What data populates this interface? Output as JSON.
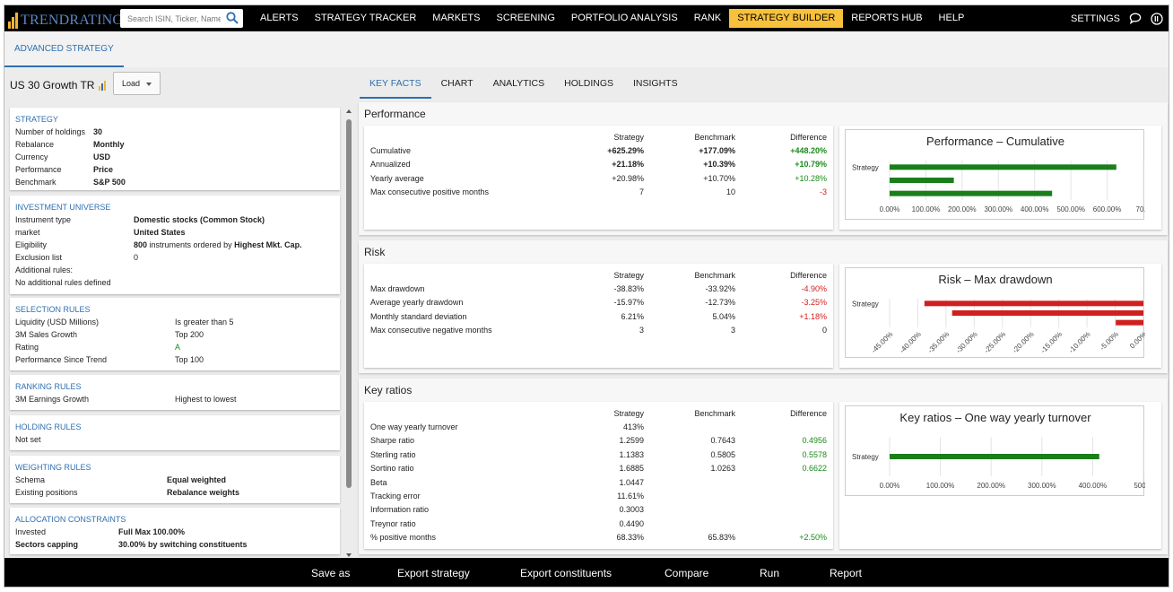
{
  "brand": {
    "logo_text": "TRENDRATING",
    "accent": "#f7c13b",
    "link_color": "#2f6fb0"
  },
  "search": {
    "placeholder": "Search ISIN, Ticker, Name"
  },
  "nav": {
    "items": [
      "ALERTS",
      "STRATEGY TRACKER",
      "MARKETS",
      "SCREENING",
      "PORTFOLIO ANALYSIS",
      "RANK",
      "STRATEGY BUILDER",
      "REPORTS HUB",
      "HELP"
    ],
    "active": "STRATEGY BUILDER",
    "settings": "SETTINGS"
  },
  "subhead": {
    "tab": "ADVANCED STRATEGY"
  },
  "strategy": {
    "name": "US 30 Growth TR",
    "load_label": "Load"
  },
  "cards": {
    "strategy": {
      "title": "STRATEGY",
      "rows": [
        {
          "k": "Number of holdings",
          "v": "30"
        },
        {
          "k": "Rebalance",
          "v": "Monthly"
        },
        {
          "k": "Currency",
          "v": "USD"
        },
        {
          "k": "Performance",
          "v": "Price"
        },
        {
          "k": "Benchmark",
          "v": "S&P 500"
        }
      ]
    },
    "universe": {
      "title": "INVESTMENT UNIVERSE",
      "instrument_type_k": "Instrument type",
      "instrument_type_v": "Domestic stocks (Common Stock)",
      "market_k": "market",
      "market_v": "United States",
      "eligibility_k": "Eligibility",
      "eligibility_count": "800",
      "eligibility_text": " instruments ordered by ",
      "eligibility_order": "Highest Mkt. Cap.",
      "exclusion_k": "Exclusion list",
      "exclusion_v": "0",
      "additional_k": "Additional rules:",
      "additional_v": "No additional rules defined"
    },
    "selection": {
      "title": "SELECTION RULES",
      "rows": [
        {
          "k": "Liquidity (USD Millions)",
          "v": "Is greater than 5"
        },
        {
          "k": "3M Sales Growth",
          "v": "Top 200"
        },
        {
          "k": "Rating",
          "v": "A"
        },
        {
          "k": "Performance Since Trend",
          "v": "Top 100"
        }
      ]
    },
    "ranking": {
      "title": "RANKING RULES",
      "k": "3M Earnings Growth",
      "v": "Highest to lowest"
    },
    "holding": {
      "title": "HOLDING RULES",
      "v": "Not set"
    },
    "weighting": {
      "title": "WEIGHTING RULES",
      "rows": [
        {
          "k": "Schema",
          "v": "Equal weighted"
        },
        {
          "k": "Existing positions",
          "v": "Rebalance weights"
        }
      ]
    },
    "allocation": {
      "title": "ALLOCATION CONSTRAINTS",
      "rows": [
        {
          "k": "Invested",
          "v": "Full Max 100.00%"
        },
        {
          "k": "Sectors capping",
          "v": "30.00% by switching constituents"
        }
      ]
    }
  },
  "tabs": [
    "KEY FACTS",
    "CHART",
    "ANALYTICS",
    "HOLDINGS",
    "INSIGHTS"
  ],
  "columns": [
    "Strategy",
    "Benchmark",
    "Difference"
  ],
  "performance": {
    "title": "Performance",
    "rows": [
      {
        "label": "Cumulative",
        "s": "+625.29%",
        "b": "+177.09%",
        "d": "+448.20%",
        "dc": "pos",
        "bold": true
      },
      {
        "label": "Annualized",
        "s": "+21.18%",
        "b": "+10.39%",
        "d": "+10.79%",
        "dc": "pos",
        "bold": true
      },
      {
        "label": "Yearly average",
        "s": "+20.98%",
        "b": "+10.70%",
        "d": "+10.28%",
        "dc": "pos",
        "bold": false
      },
      {
        "label": "Max consecutive positive months",
        "s": "7",
        "b": "10",
        "d": "-3",
        "dc": "neg",
        "bold": false
      }
    ]
  },
  "risk": {
    "title": "Risk",
    "rows": [
      {
        "label": "Max drawdown",
        "s": "-38.83%",
        "b": "-33.92%",
        "d": "-4.90%",
        "dc": "neg"
      },
      {
        "label": "Average yearly drawdown",
        "s": "-15.97%",
        "b": "-12.73%",
        "d": "-3.25%",
        "dc": "neg"
      },
      {
        "label": "Monthly standard deviation",
        "s": "6.21%",
        "b": "5.04%",
        "d": "+1.18%",
        "dc": "neg"
      },
      {
        "label": "Max consecutive negative months",
        "s": "3",
        "b": "3",
        "d": "0",
        "dc": ""
      }
    ]
  },
  "ratios": {
    "title": "Key ratios",
    "rows": [
      {
        "label": "One way yearly turnover",
        "s": "413%",
        "b": "",
        "d": "",
        "dc": ""
      },
      {
        "label": "Sharpe ratio",
        "s": "1.2599",
        "b": "0.7643",
        "d": "0.4956",
        "dc": "pos"
      },
      {
        "label": "Sterling ratio",
        "s": "1.1383",
        "b": "0.5805",
        "d": "0.5578",
        "dc": "pos"
      },
      {
        "label": "Sortino ratio",
        "s": "1.6885",
        "b": "1.0263",
        "d": "0.6622",
        "dc": "pos"
      },
      {
        "label": "Beta",
        "s": "1.0447",
        "b": "",
        "d": "",
        "dc": ""
      },
      {
        "label": "Tracking error",
        "s": "11.61%",
        "b": "",
        "d": "",
        "dc": ""
      },
      {
        "label": "Information ratio",
        "s": "0.3003",
        "b": "",
        "d": "",
        "dc": ""
      },
      {
        "label": "Treynor ratio",
        "s": "0.4490",
        "b": "",
        "d": "",
        "dc": ""
      },
      {
        "label": "% positive months",
        "s": "68.33%",
        "b": "65.83%",
        "d": "+2.50%",
        "dc": "pos"
      }
    ]
  },
  "chart_data": [
    {
      "type": "bar",
      "orientation": "horizontal",
      "title": "Performance – Cumulative",
      "categories": [
        "Strategy",
        "",
        ""
      ],
      "values": [
        625.29,
        177.09,
        448.2
      ],
      "color": "#1a7f1a",
      "xlim": [
        0,
        700
      ],
      "ticks": [
        "0.00%",
        "100.00%",
        "200.00%",
        "300.00%",
        "400.00%",
        "500.00%",
        "600.00%",
        "70…"
      ],
      "grid": true
    },
    {
      "type": "bar",
      "orientation": "horizontal",
      "title": "Risk – Max drawdown",
      "categories": [
        "Strategy",
        "",
        ""
      ],
      "values": [
        -38.83,
        -33.92,
        -4.9
      ],
      "color": "#d01f1f",
      "xlim": [
        -45,
        0
      ],
      "ticks": [
        "-45.00%",
        "-40.00%",
        "-35.00%",
        "-30.00%",
        "-25.00%",
        "-20.00%",
        "-15.00%",
        "-10.00%",
        "-5.00%",
        "0.00%"
      ],
      "grid": true
    },
    {
      "type": "bar",
      "orientation": "horizontal",
      "title": "Key ratios – One way yearly turnover",
      "categories": [
        "Strategy"
      ],
      "values": [
        413
      ],
      "color": "#1a7f1a",
      "xlim": [
        0,
        500
      ],
      "ticks": [
        "0.00%",
        "100.00%",
        "200.00%",
        "300.00%",
        "400.00%",
        "500…"
      ],
      "grid": true
    }
  ],
  "bottom": [
    "Save as",
    "Export strategy",
    "Export constituents",
    "Compare",
    "Run",
    "Report"
  ]
}
